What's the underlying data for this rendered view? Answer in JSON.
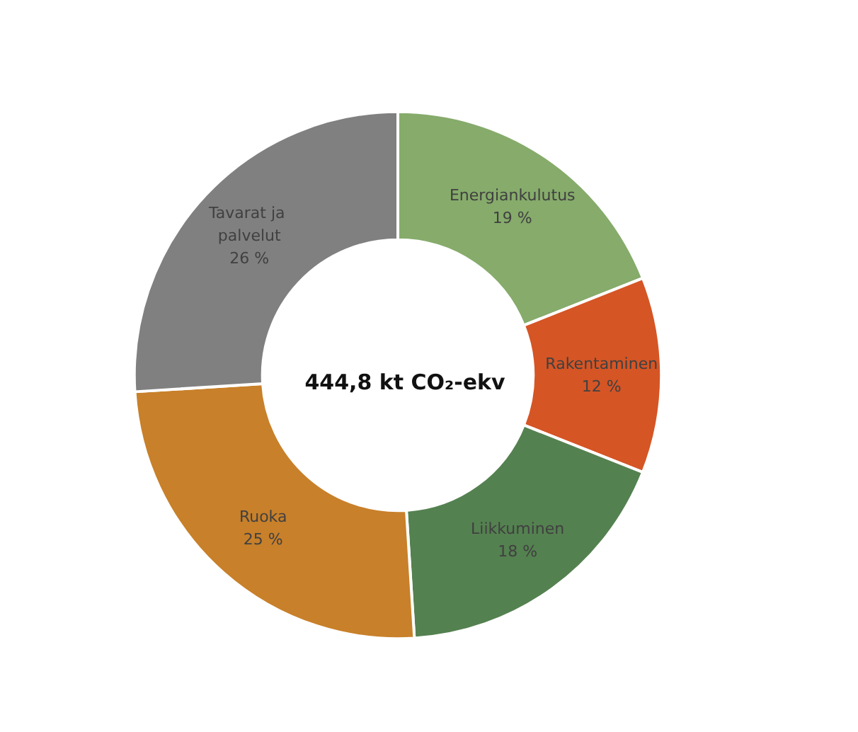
{
  "chart_data": {
    "type": "donut",
    "title": "444,8 kt CO₂-ekv",
    "categories": [
      "Energiankulutus",
      "Rakentaminen",
      "Liikkuminen",
      "Ruoka",
      "Tavarat ja palvelut"
    ],
    "values": [
      19,
      12,
      18,
      25,
      26
    ],
    "colors": [
      "#86ab6b",
      "#d55525",
      "#548150",
      "#c8802a",
      "#808080"
    ],
    "value_labels": [
      "19 %",
      "12 %",
      "18 %",
      "25 %",
      "26 %"
    ],
    "legend": false
  }
}
